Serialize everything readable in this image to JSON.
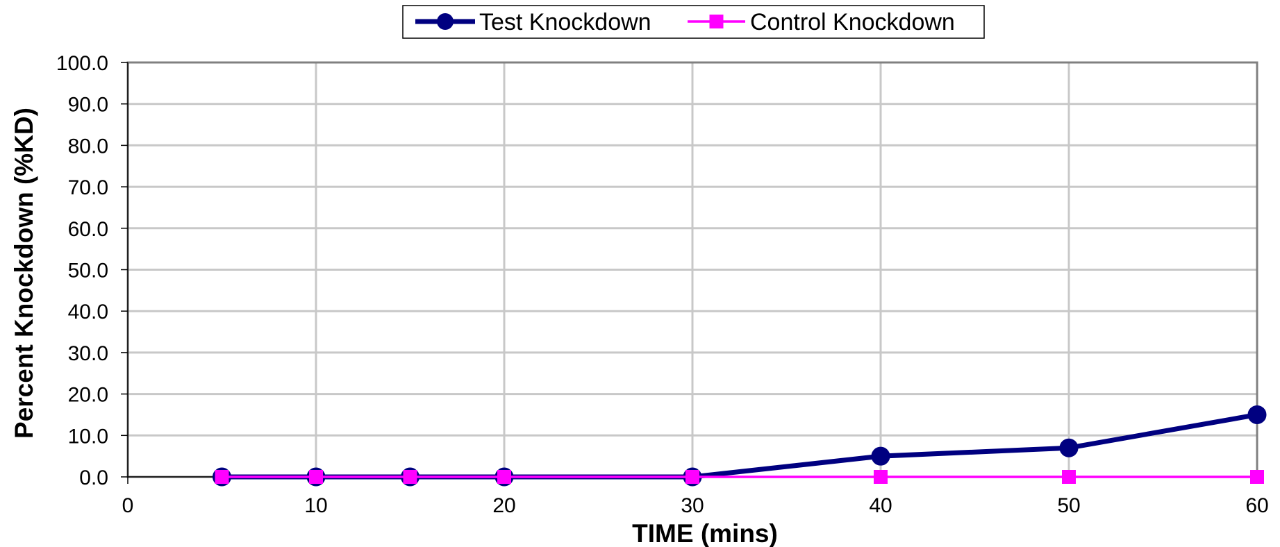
{
  "chart_data": {
    "type": "line",
    "xlabel": "TIME (mins)",
    "ylabel": "Percent Knockdown (%KD)",
    "xlim": [
      0,
      60
    ],
    "ylim": [
      0,
      100
    ],
    "x_ticks": [
      "0",
      "10",
      "20",
      "30",
      "40",
      "50",
      "60"
    ],
    "y_ticks": [
      "0.0",
      "10.0",
      "20.0",
      "30.0",
      "40.0",
      "50.0",
      "60.0",
      "70.0",
      "80.0",
      "90.0",
      "100.0"
    ],
    "grid": true,
    "legend_position": "top-center",
    "series": [
      {
        "name": "Test Knockdown",
        "color": "#000080",
        "marker": "circle",
        "x": [
          5,
          10,
          15,
          20,
          30,
          40,
          50,
          60
        ],
        "values": [
          0,
          0,
          0,
          0,
          0,
          5,
          7,
          15
        ]
      },
      {
        "name": "Control Knockdown",
        "color": "#ff00ff",
        "marker": "square",
        "x": [
          5,
          10,
          15,
          20,
          30,
          40,
          50,
          60
        ],
        "values": [
          0,
          0,
          0,
          0,
          0,
          0,
          0,
          0
        ]
      }
    ]
  }
}
